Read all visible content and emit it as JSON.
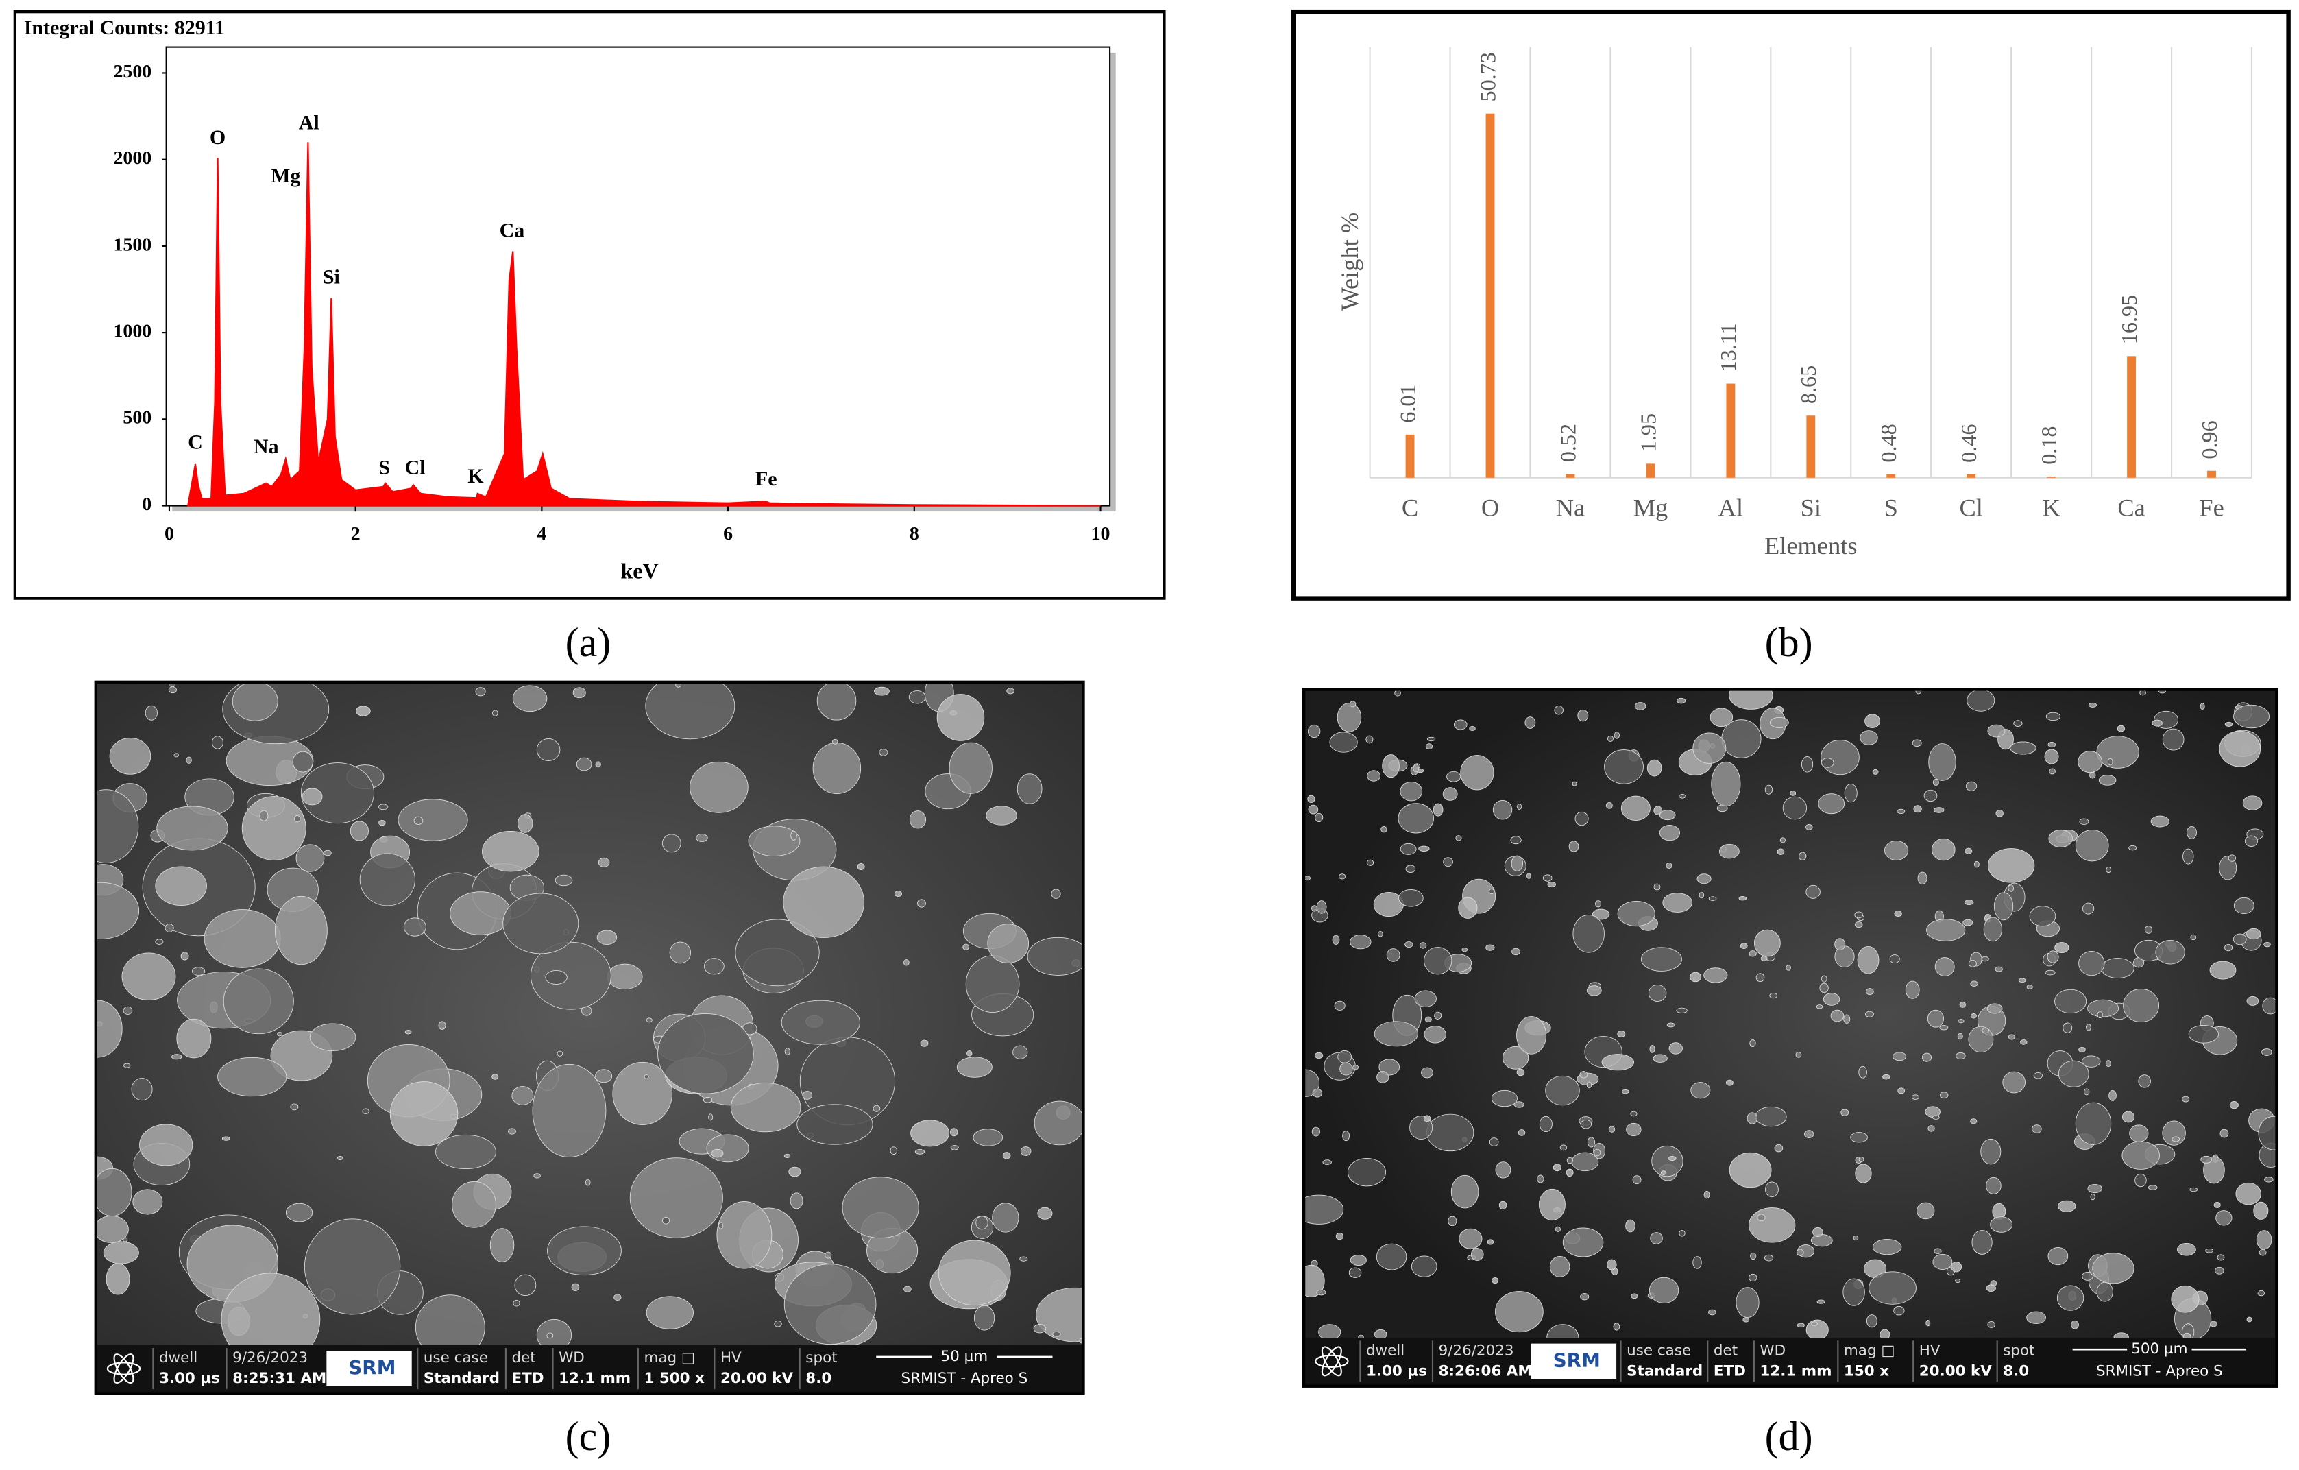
{
  "chart_data": [
    {
      "type": "area",
      "title": "Integral Counts: 82911",
      "x_label": "keV",
      "x": [
        0.2,
        0.25,
        0.28,
        0.31,
        0.35,
        0.45,
        0.49,
        0.52,
        0.55,
        0.6,
        0.8,
        1.0,
        1.04,
        1.1,
        1.2,
        1.25,
        1.3,
        1.4,
        1.45,
        1.49,
        1.53,
        1.6,
        1.7,
        1.74,
        1.78,
        1.85,
        2.0,
        2.3,
        2.32,
        2.4,
        2.6,
        2.62,
        2.7,
        3.0,
        3.3,
        3.31,
        3.4,
        3.6,
        3.65,
        3.69,
        3.73,
        3.8,
        3.95,
        4.01,
        4.1,
        4.3,
        5.0,
        6.0,
        6.4,
        6.45,
        7.0,
        8.0,
        10.0
      ],
      "values": [
        0,
        150,
        240,
        120,
        40,
        40,
        600,
        2010,
        600,
        60,
        70,
        120,
        130,
        110,
        180,
        270,
        150,
        200,
        900,
        2100,
        800,
        250,
        500,
        1200,
        400,
        150,
        90,
        110,
        130,
        80,
        100,
        120,
        70,
        50,
        45,
        70,
        50,
        300,
        1300,
        1470,
        900,
        150,
        200,
        300,
        100,
        40,
        25,
        15,
        25,
        15,
        10,
        5,
        0
      ],
      "color": "#ff0000",
      "xlim": [
        0,
        10.1
      ],
      "ylim": [
        0,
        2650
      ],
      "xticks": [
        0,
        2,
        4,
        6,
        8,
        10
      ],
      "yticks": [
        0,
        500,
        1000,
        1500,
        2000,
        2500
      ],
      "annotations": [
        {
          "text": "C",
          "x": 0.28,
          "y": 357
        },
        {
          "text": "O",
          "x": 0.52,
          "y": 2117
        },
        {
          "text": "Na",
          "x": 1.04,
          "y": 330
        },
        {
          "text": "Mg",
          "x": 1.25,
          "y": 1896
        },
        {
          "text": "Al",
          "x": 1.5,
          "y": 2202
        },
        {
          "text": "Si",
          "x": 1.74,
          "y": 1310
        },
        {
          "text": "S",
          "x": 2.31,
          "y": 210
        },
        {
          "text": "Cl",
          "x": 2.64,
          "y": 210
        },
        {
          "text": "K",
          "x": 3.29,
          "y": 160
        },
        {
          "text": "Ca",
          "x": 3.68,
          "y": 1580
        },
        {
          "text": "Fe",
          "x": 6.41,
          "y": 145
        }
      ]
    },
    {
      "type": "bar",
      "x_label": "Elements",
      "y_label": "Weight %",
      "categories": [
        "C",
        "O",
        "Na",
        "Mg",
        "Al",
        "Si",
        "S",
        "Cl",
        "K",
        "Ca",
        "Fe"
      ],
      "values": [
        6.01,
        50.73,
        0.52,
        1.95,
        13.11,
        8.65,
        0.48,
        0.46,
        0.18,
        16.95,
        0.96
      ],
      "color": "#ed7d31",
      "ylim": [
        0,
        60
      ]
    }
  ],
  "panel_labels": [
    "(a)",
    "(b)",
    "(c)",
    "(d)"
  ],
  "sem_images": [
    {
      "fields": [
        {
          "top": "dwell",
          "bottom": "3.00 µs"
        },
        {
          "top": "9/26/2023",
          "bottom": "8:25:31 AM"
        },
        {
          "top": "use case",
          "bottom": "Standard"
        },
        {
          "top": "det",
          "bottom": "ETD"
        },
        {
          "top": "WD",
          "bottom": "12.1 mm"
        },
        {
          "top": "mag □",
          "bottom": "1 500 x"
        },
        {
          "top": "HV",
          "bottom": "20.00 kV"
        },
        {
          "top": "spot",
          "bottom": "8.0"
        }
      ],
      "logo": "SRM",
      "scale_bar": "50 µm",
      "instrument": "SRMIST - Apreo S"
    },
    {
      "fields": [
        {
          "top": "dwell",
          "bottom": "1.00 µs"
        },
        {
          "top": "9/26/2023",
          "bottom": "8:26:06 AM"
        },
        {
          "top": "use case",
          "bottom": "Standard"
        },
        {
          "top": "det",
          "bottom": "ETD"
        },
        {
          "top": "WD",
          "bottom": "12.1 mm"
        },
        {
          "top": "mag □",
          "bottom": "150 x"
        },
        {
          "top": "HV",
          "bottom": "20.00 kV"
        },
        {
          "top": "spot",
          "bottom": "8.0"
        }
      ],
      "logo": "SRM",
      "scale_bar": "500 µm",
      "instrument": "SRMIST - Apreo S"
    }
  ]
}
